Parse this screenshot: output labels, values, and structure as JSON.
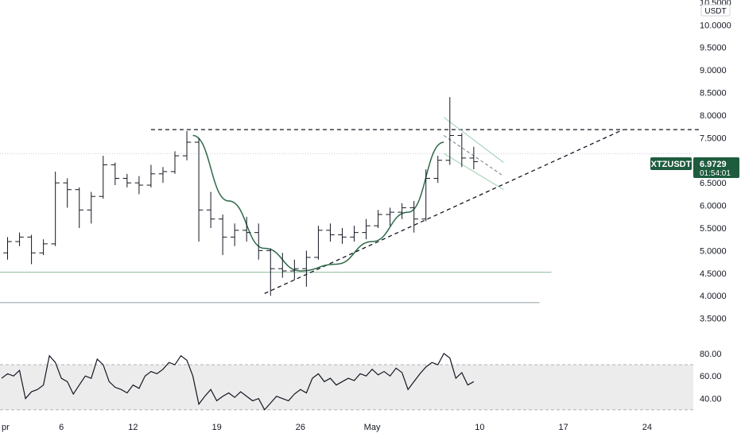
{
  "chart_data": [
    {
      "type": "ohlc",
      "symbol": "XTZUSDT",
      "quote_currency": "USDT",
      "last_price": "6.9729",
      "countdown": "01:54:01",
      "y_ticks": [
        "10.5000",
        "10.0000",
        "9.5000",
        "9.0000",
        "8.5000",
        "8.0000",
        "7.5000",
        "7.0000",
        "6.5000",
        "6.0000",
        "5.5000",
        "5.0000",
        "4.5000",
        "4.0000",
        "3.5000"
      ],
      "ylim": [
        3.3,
        10.55
      ],
      "x_ticks": [
        "pr",
        "6",
        "12",
        "19",
        "26",
        "May",
        "10",
        "17",
        "24"
      ],
      "x_tick_days": [
        0,
        5,
        11,
        18,
        25,
        31,
        40,
        47,
        54
      ],
      "x_range_days": [
        0,
        58
      ],
      "bars_daily": [
        {
          "day": 0,
          "open": 4.95,
          "high": 5.3,
          "low": 4.8,
          "close": 5.2
        },
        {
          "day": 1,
          "open": 5.2,
          "high": 5.4,
          "low": 5.1,
          "close": 5.3
        },
        {
          "day": 2,
          "open": 5.3,
          "high": 5.35,
          "low": 4.7,
          "close": 4.95
        },
        {
          "day": 3,
          "open": 4.95,
          "high": 5.25,
          "low": 4.9,
          "close": 5.15
        },
        {
          "day": 4,
          "open": 5.15,
          "high": 6.75,
          "low": 5.1,
          "close": 6.5
        },
        {
          "day": 5,
          "open": 6.5,
          "high": 6.6,
          "low": 5.95,
          "close": 6.35
        },
        {
          "day": 6,
          "open": 6.35,
          "high": 6.4,
          "low": 5.5,
          "close": 5.9
        },
        {
          "day": 7,
          "open": 5.9,
          "high": 6.3,
          "low": 5.6,
          "close": 6.2
        },
        {
          "day": 8,
          "open": 6.2,
          "high": 7.1,
          "low": 6.15,
          "close": 6.9
        },
        {
          "day": 9,
          "open": 6.9,
          "high": 6.95,
          "low": 6.45,
          "close": 6.6
        },
        {
          "day": 10,
          "open": 6.6,
          "high": 6.7,
          "low": 6.4,
          "close": 6.5
        },
        {
          "day": 11,
          "open": 6.5,
          "high": 6.65,
          "low": 6.25,
          "close": 6.45
        },
        {
          "day": 12,
          "open": 6.45,
          "high": 6.9,
          "low": 6.4,
          "close": 6.7
        },
        {
          "day": 13,
          "open": 6.7,
          "high": 6.85,
          "low": 6.5,
          "close": 6.75
        },
        {
          "day": 14,
          "open": 6.75,
          "high": 7.2,
          "low": 6.7,
          "close": 7.1
        },
        {
          "day": 15,
          "open": 7.1,
          "high": 7.65,
          "low": 7.0,
          "close": 7.4
        },
        {
          "day": 16,
          "open": 7.4,
          "high": 7.5,
          "low": 5.2,
          "close": 5.9
        },
        {
          "day": 17,
          "open": 5.9,
          "high": 6.3,
          "low": 5.5,
          "close": 5.7
        },
        {
          "day": 18,
          "open": 5.7,
          "high": 5.8,
          "low": 4.9,
          "close": 5.3
        },
        {
          "day": 19,
          "open": 5.3,
          "high": 5.6,
          "low": 5.1,
          "close": 5.45
        },
        {
          "day": 20,
          "open": 5.45,
          "high": 5.75,
          "low": 5.2,
          "close": 5.4
        },
        {
          "day": 21,
          "open": 5.4,
          "high": 5.6,
          "low": 4.8,
          "close": 5.0
        },
        {
          "day": 22,
          "open": 5.0,
          "high": 5.05,
          "low": 4.0,
          "close": 4.6
        },
        {
          "day": 23,
          "open": 4.6,
          "high": 4.95,
          "low": 4.4,
          "close": 4.55
        },
        {
          "day": 24,
          "open": 4.55,
          "high": 4.8,
          "low": 4.35,
          "close": 4.6
        },
        {
          "day": 25,
          "open": 4.6,
          "high": 5.0,
          "low": 4.2,
          "close": 4.85
        },
        {
          "day": 26,
          "open": 4.85,
          "high": 5.55,
          "low": 4.8,
          "close": 5.45
        },
        {
          "day": 27,
          "open": 5.45,
          "high": 5.6,
          "low": 5.2,
          "close": 5.35
        },
        {
          "day": 28,
          "open": 5.35,
          "high": 5.5,
          "low": 5.15,
          "close": 5.3
        },
        {
          "day": 29,
          "open": 5.3,
          "high": 5.55,
          "low": 5.2,
          "close": 5.4
        },
        {
          "day": 30,
          "open": 5.4,
          "high": 5.7,
          "low": 5.25,
          "close": 5.55
        },
        {
          "day": 31,
          "open": 5.55,
          "high": 5.9,
          "low": 5.5,
          "close": 5.8
        },
        {
          "day": 32,
          "open": 5.8,
          "high": 5.95,
          "low": 5.55,
          "close": 5.85
        },
        {
          "day": 33,
          "open": 5.85,
          "high": 6.05,
          "low": 5.7,
          "close": 5.95
        },
        {
          "day": 34,
          "open": 5.95,
          "high": 6.1,
          "low": 5.4,
          "close": 5.7
        },
        {
          "day": 35,
          "open": 5.7,
          "high": 6.8,
          "low": 5.65,
          "close": 6.6
        },
        {
          "day": 36,
          "open": 6.6,
          "high": 7.1,
          "low": 6.5,
          "close": 7.0
        },
        {
          "day": 37,
          "open": 7.0,
          "high": 8.4,
          "low": 6.9,
          "close": 7.55
        },
        {
          "day": 38,
          "open": 7.55,
          "high": 7.6,
          "low": 6.85,
          "close": 7.05
        },
        {
          "day": 39,
          "open": 7.05,
          "high": 7.3,
          "low": 6.8,
          "close": 6.97
        }
      ],
      "horizontal_lines": [
        7.15,
        4.52,
        3.85
      ],
      "resistance_line": 7.68,
      "rising_trendline": [
        {
          "day": 22,
          "price": 4.05
        },
        {
          "day": 52,
          "price": 7.68
        }
      ],
      "cup_curve": [
        {
          "day": 16,
          "price": 7.55
        },
        {
          "day": 19,
          "price": 6.1
        },
        {
          "day": 22,
          "price": 5.05
        },
        {
          "day": 25,
          "price": 4.55
        },
        {
          "day": 28,
          "price": 4.7
        },
        {
          "day": 31,
          "price": 5.2
        },
        {
          "day": 34,
          "price": 5.85
        },
        {
          "day": 37,
          "price": 7.4
        }
      ],
      "descending_channel": {
        "upper": [
          {
            "day": 37,
            "price": 7.95
          },
          {
            "day": 42,
            "price": 6.95
          }
        ],
        "middle": [
          {
            "day": 37,
            "price": 7.55
          },
          {
            "day": 42,
            "price": 6.65
          }
        ],
        "lower": [
          {
            "day": 37,
            "price": 7.15
          },
          {
            "day": 42,
            "price": 6.35
          }
        ]
      },
      "colors": {
        "ohlc": "#131722",
        "cup_curve": "#2e6b4a",
        "support_lines": "#8fb89a",
        "channel": "#9ccfb2",
        "label_bg": "#1e5c3e"
      }
    },
    {
      "type": "line",
      "indicator": "RSI",
      "y_ticks": [
        "80.00",
        "60.00",
        "40.00"
      ],
      "ylim": [
        27,
        94
      ],
      "band": [
        30,
        70
      ],
      "band_color": "#ececec",
      "x_range_days": [
        0,
        58
      ],
      "series": [
        {
          "values": [
            [
              0,
              58
            ],
            [
              0.5,
              62
            ],
            [
              1,
              60
            ],
            [
              1.5,
              65
            ],
            [
              2,
              40
            ],
            [
              2.5,
              46
            ],
            [
              3,
              48
            ],
            [
              3.5,
              52
            ],
            [
              4,
              78
            ],
            [
              4.5,
              72
            ],
            [
              5,
              58
            ],
            [
              5.5,
              55
            ],
            [
              6,
              44
            ],
            [
              6.5,
              52
            ],
            [
              7,
              60
            ],
            [
              7.5,
              58
            ],
            [
              8,
              75
            ],
            [
              8.5,
              70
            ],
            [
              9,
              55
            ],
            [
              9.5,
              50
            ],
            [
              10,
              48
            ],
            [
              10.5,
              45
            ],
            [
              11,
              52
            ],
            [
              11.5,
              49
            ],
            [
              12,
              60
            ],
            [
              12.5,
              64
            ],
            [
              13,
              62
            ],
            [
              13.5,
              66
            ],
            [
              14,
              72
            ],
            [
              14.5,
              70
            ],
            [
              15,
              78
            ],
            [
              15.5,
              74
            ],
            [
              16,
              60
            ],
            [
              16.5,
              35
            ],
            [
              17,
              42
            ],
            [
              17.5,
              48
            ],
            [
              18,
              38
            ],
            [
              18.5,
              42
            ],
            [
              19,
              45
            ],
            [
              19.5,
              41
            ],
            [
              20,
              46
            ],
            [
              20.5,
              42
            ],
            [
              21,
              38
            ],
            [
              21.5,
              40
            ],
            [
              22,
              30
            ],
            [
              22.5,
              36
            ],
            [
              23,
              42
            ],
            [
              23.5,
              40
            ],
            [
              24,
              38
            ],
            [
              24.5,
              44
            ],
            [
              25,
              48
            ],
            [
              25.5,
              45
            ],
            [
              26,
              58
            ],
            [
              26.5,
              62
            ],
            [
              27,
              55
            ],
            [
              27.5,
              58
            ],
            [
              28,
              52
            ],
            [
              28.5,
              55
            ],
            [
              29,
              58
            ],
            [
              29.5,
              56
            ],
            [
              30,
              62
            ],
            [
              30.5,
              60
            ],
            [
              31,
              66
            ],
            [
              31.5,
              61
            ],
            [
              32,
              64
            ],
            [
              32.5,
              60
            ],
            [
              33,
              67
            ],
            [
              33.5,
              63
            ],
            [
              34,
              48
            ],
            [
              34.5,
              55
            ],
            [
              35,
              62
            ],
            [
              35.5,
              68
            ],
            [
              36,
              72
            ],
            [
              36.5,
              70
            ],
            [
              37,
              80
            ],
            [
              37.5,
              76
            ],
            [
              38,
              58
            ],
            [
              38.5,
              63
            ],
            [
              39,
              52
            ],
            [
              39.5,
              55
            ]
          ]
        }
      ],
      "color": "#131722"
    }
  ]
}
